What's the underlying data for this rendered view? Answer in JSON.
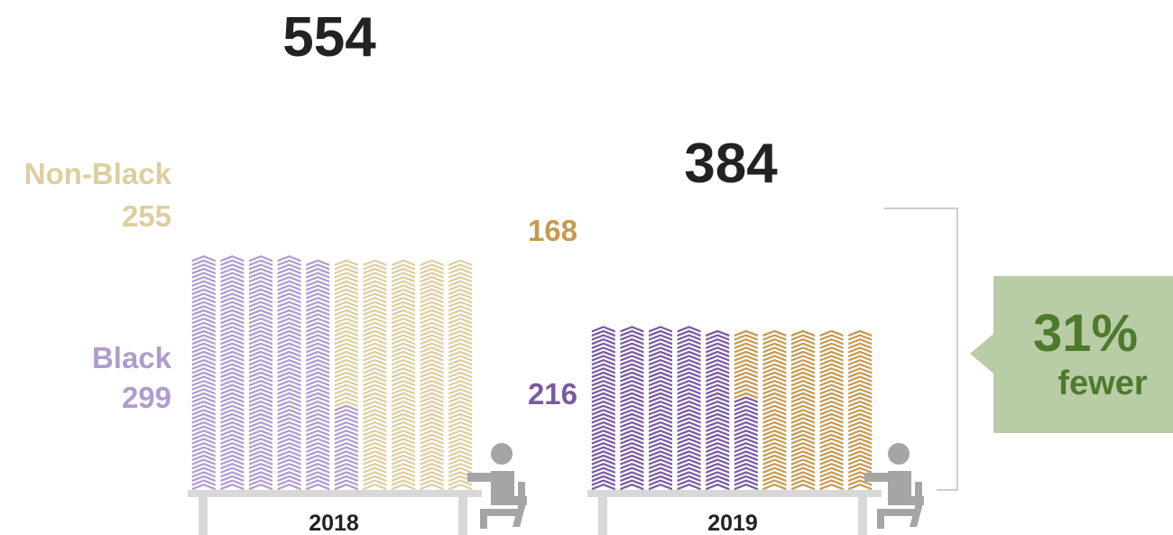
{
  "chart_data": {
    "type": "bar",
    "subtype": "stacked-icon-pictograph",
    "categories": [
      "2018",
      "2019"
    ],
    "totals": [
      554,
      384
    ],
    "series": [
      {
        "name": "Black",
        "values": [
          299,
          216
        ]
      },
      {
        "name": "Non-Black",
        "values": [
          255,
          168
        ]
      }
    ],
    "colors": {
      "2018": {
        "Black": "#b09ccc",
        "Non-Black": "#ddcea0"
      },
      "2019": {
        "Black": "#7b5a9e",
        "Non-Black": "#c49a52"
      }
    },
    "callout": {
      "percent": "31%",
      "text": "fewer"
    },
    "callout_color": "#b8cca6",
    "icon": "seated-person-at-desk-icon"
  }
}
